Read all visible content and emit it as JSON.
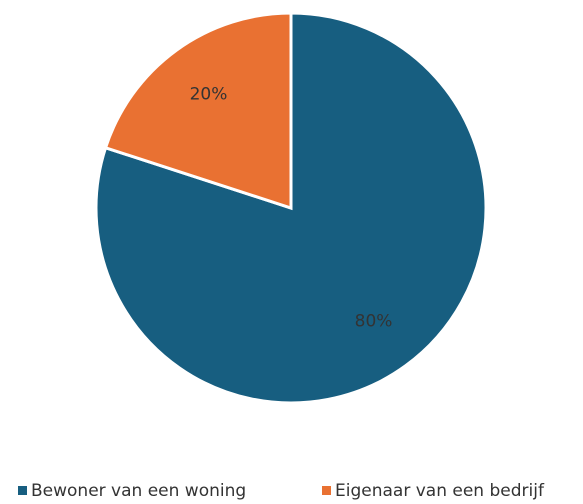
{
  "chart_data": {
    "type": "pie",
    "categories": [
      "Bewoner van een woning",
      "Eigenaar van een bedrijf"
    ],
    "values": [
      80,
      20
    ],
    "value_labels": [
      "80%",
      "20%"
    ],
    "colors": [
      "#175e80",
      "#e97132"
    ],
    "legend": "bottom"
  }
}
